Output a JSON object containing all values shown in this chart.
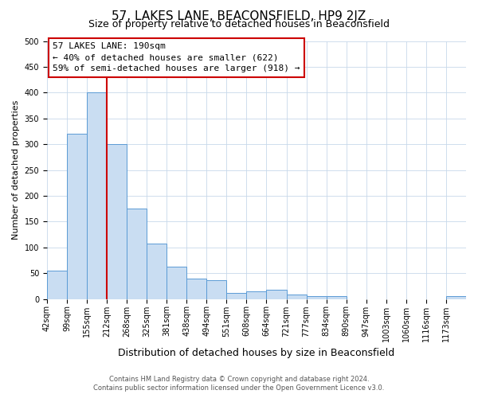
{
  "title": "57, LAKES LANE, BEACONSFIELD, HP9 2JZ",
  "subtitle": "Size of property relative to detached houses in Beaconsfield",
  "xlabel": "Distribution of detached houses by size in Beaconsfield",
  "ylabel": "Number of detached properties",
  "footer_line1": "Contains HM Land Registry data © Crown copyright and database right 2024.",
  "footer_line2": "Contains public sector information licensed under the Open Government Licence v3.0.",
  "bin_labels": [
    "42sqm",
    "99sqm",
    "155sqm",
    "212sqm",
    "268sqm",
    "325sqm",
    "381sqm",
    "438sqm",
    "494sqm",
    "551sqm",
    "608sqm",
    "664sqm",
    "721sqm",
    "777sqm",
    "834sqm",
    "890sqm",
    "947sqm",
    "1003sqm",
    "1060sqm",
    "1116sqm",
    "1173sqm"
  ],
  "bar_heights": [
    55,
    320,
    400,
    300,
    175,
    108,
    63,
    40,
    37,
    12,
    15,
    18,
    9,
    5,
    5,
    0,
    0,
    0,
    0,
    0,
    5
  ],
  "bar_color": "#c9ddf2",
  "bar_edge_color": "#5b9bd5",
  "vline_x": 3.0,
  "vline_color": "#cc0000",
  "annotation_text": "57 LAKES LANE: 190sqm\n← 40% of detached houses are smaller (622)\n59% of semi-detached houses are larger (918) →",
  "annotation_box_color": "#cc0000",
  "ylim": [
    0,
    500
  ],
  "yticks": [
    0,
    50,
    100,
    150,
    200,
    250,
    300,
    350,
    400,
    450,
    500
  ],
  "background_color": "#ffffff",
  "grid_color": "#c8d8ea",
  "title_fontsize": 11,
  "subtitle_fontsize": 9,
  "xlabel_fontsize": 9,
  "ylabel_fontsize": 8,
  "tick_fontsize": 7,
  "annotation_fontsize": 8,
  "footer_fontsize": 6
}
